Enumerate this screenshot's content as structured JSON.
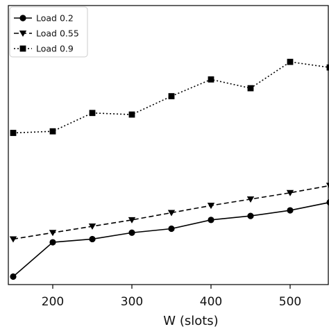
{
  "chart_data": {
    "type": "line",
    "xlabel": "W (slots)",
    "ylabel": "",
    "title": "",
    "xlim": [
      140,
      560
    ],
    "x_ticks": [
      200,
      300,
      400,
      500
    ],
    "y_ticks": [],
    "grid": false,
    "legend_placement": "top-left",
    "series": [
      {
        "name": "Load 0.2",
        "marker": "circle",
        "linestyle": "solid",
        "x": [
          150,
          200,
          250,
          300,
          350,
          400,
          450,
          500,
          550
        ],
        "y": [
          10,
          53,
          57,
          65,
          70,
          81,
          86,
          93,
          103
        ]
      },
      {
        "name": "Load 0.55",
        "marker": "triangle-down",
        "linestyle": "dashed",
        "x": [
          150,
          200,
          250,
          300,
          350,
          400,
          450,
          500,
          550
        ],
        "y": [
          57,
          65,
          73,
          81,
          90,
          99,
          107,
          115,
          124
        ]
      },
      {
        "name": "Load 0.9",
        "marker": "square",
        "linestyle": "dotted",
        "x": [
          150,
          200,
          250,
          300,
          350,
          400,
          450,
          500,
          550
        ],
        "y": [
          190,
          192,
          215,
          213,
          236,
          257,
          246,
          279,
          272
        ]
      }
    ]
  }
}
